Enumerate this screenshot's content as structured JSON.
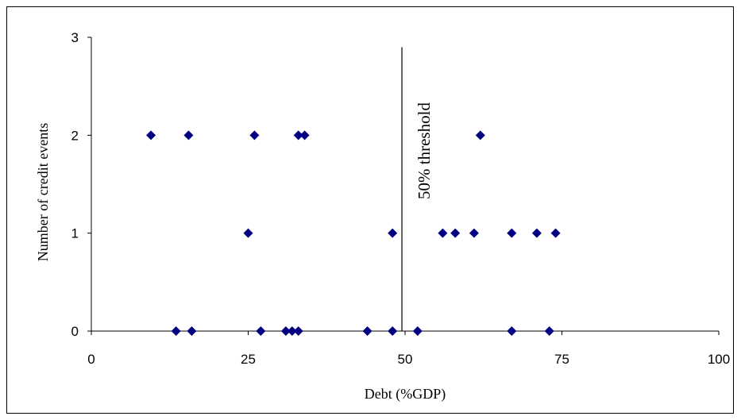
{
  "chart_data": {
    "type": "scatter",
    "title": "",
    "xlabel": "Debt (%GDP)",
    "ylabel": "Number of credit events",
    "xlim": [
      0,
      100
    ],
    "ylim": [
      0,
      3
    ],
    "x_ticks": [
      0,
      25,
      50,
      75,
      100
    ],
    "y_ticks": [
      0,
      1,
      2,
      3
    ],
    "grid": false,
    "legend": "none",
    "marker": "diamond",
    "marker_color": "#000080",
    "series": [
      {
        "points": [
          [
            9.5,
            2
          ],
          [
            15.5,
            2
          ],
          [
            26,
            2
          ],
          [
            33,
            2
          ],
          [
            34,
            2
          ],
          [
            62,
            2
          ],
          [
            25,
            1
          ],
          [
            48,
            1
          ],
          [
            56,
            1
          ],
          [
            58,
            1
          ],
          [
            61,
            1
          ],
          [
            67,
            1
          ],
          [
            71,
            1
          ],
          [
            74,
            1
          ],
          [
            13.5,
            0
          ],
          [
            16,
            0
          ],
          [
            27,
            0
          ],
          [
            31,
            0
          ],
          [
            32,
            0
          ],
          [
            33,
            0
          ],
          [
            44,
            0
          ],
          [
            48,
            0
          ],
          [
            52,
            0
          ],
          [
            67,
            0
          ],
          [
            73,
            0
          ]
        ]
      }
    ],
    "annotations": [
      {
        "type": "vline",
        "x": 49.5,
        "label": "50% threshold"
      }
    ]
  }
}
